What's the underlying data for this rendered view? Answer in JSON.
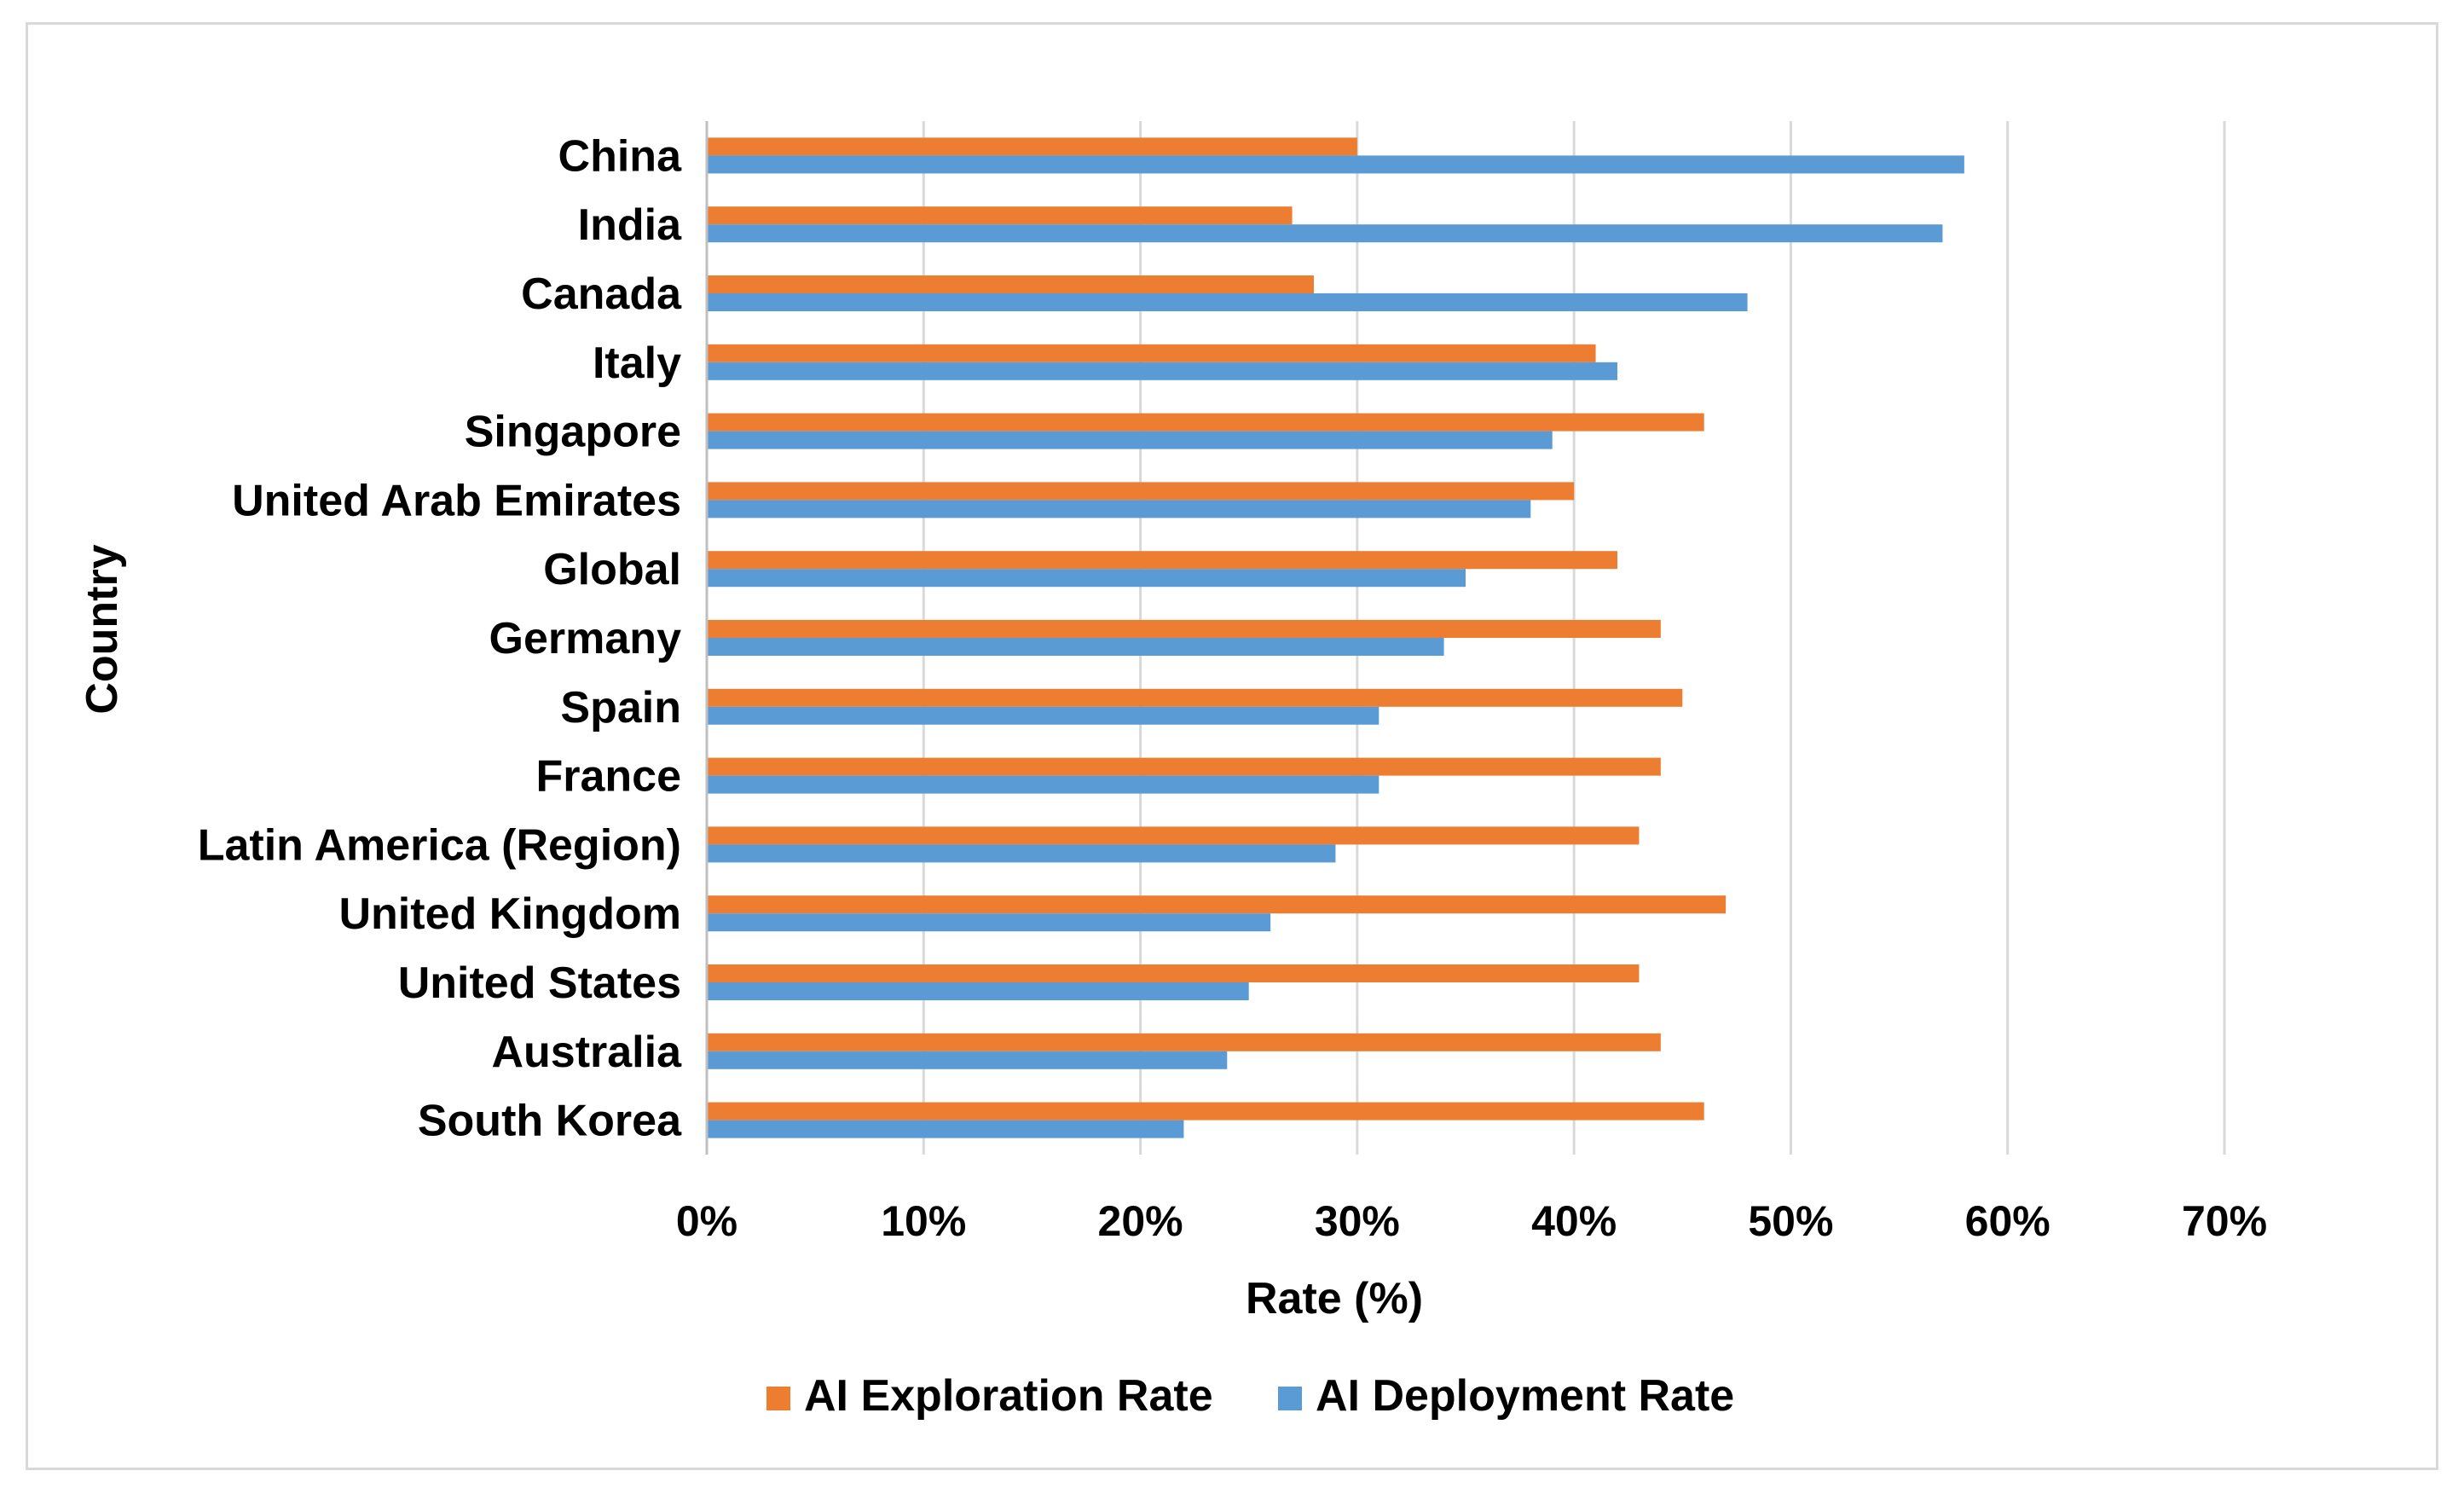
{
  "chart_data": {
    "type": "bar",
    "orientation": "horizontal",
    "title": "",
    "xlabel": "Rate (%)",
    "ylabel": "Country",
    "xlim": [
      0,
      70
    ],
    "x_ticks": [
      0,
      10,
      20,
      30,
      40,
      50,
      60,
      70
    ],
    "x_tick_labels": [
      "0%",
      "10%",
      "20%",
      "30%",
      "40%",
      "50%",
      "60%",
      "70%"
    ],
    "grid": true,
    "legend_position": "bottom",
    "categories": [
      "China",
      "India",
      "Canada",
      "Italy",
      "Singapore",
      "United Arab Emirates",
      "Global",
      "Germany",
      "Spain",
      "France",
      "Latin America (Region)",
      "United Kingdom",
      "United States",
      "Australia",
      "South Korea"
    ],
    "series": [
      {
        "name": "AI Exploration Rate",
        "color": "#ed7d31",
        "values": [
          30,
          27,
          28,
          41,
          46,
          40,
          42,
          44,
          45,
          44,
          43,
          47,
          43,
          44,
          46
        ]
      },
      {
        "name": "AI Deployment Rate",
        "color": "#5b9bd5",
        "values": [
          58,
          57,
          48,
          42,
          39,
          38,
          35,
          34,
          31,
          31,
          29,
          26,
          25,
          24,
          22
        ]
      }
    ]
  }
}
